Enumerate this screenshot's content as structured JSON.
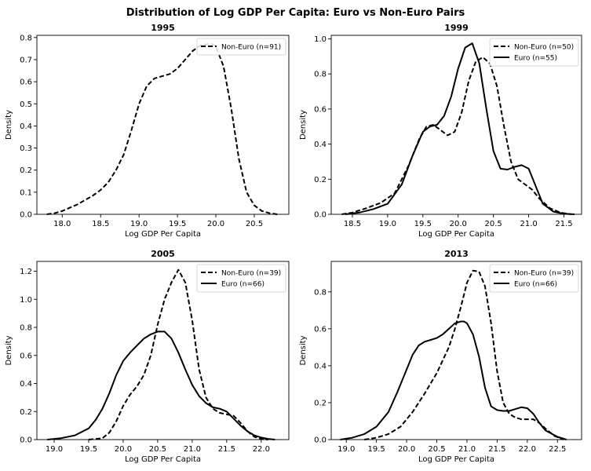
{
  "figure_title": "Distribution of Log GDP Per Capita: Euro vs Non-Euro Pairs",
  "colors": {
    "line": "#000000",
    "background": "#ffffff",
    "legend_border": "#cccccc"
  },
  "chart_data": [
    {
      "type": "line",
      "title": "1995",
      "xlabel": "Log GDP Per Capita",
      "ylabel": "Density",
      "xlim": [
        17.67,
        20.95
      ],
      "ylim": [
        0,
        0.81
      ],
      "xticks": [
        18.0,
        18.5,
        19.0,
        19.5,
        20.0,
        20.5
      ],
      "xtick_labels": [
        "18.0",
        "18.5",
        "19.0",
        "19.5",
        "20.0",
        "20.5"
      ],
      "yticks": [
        0,
        0.1,
        0.2,
        0.3,
        0.4,
        0.5,
        0.6,
        0.7,
        0.8
      ],
      "ytick_labels": [
        "0.0",
        "0.1",
        "0.2",
        "0.3",
        "0.4",
        "0.5",
        "0.6",
        "0.7",
        "0.8"
      ],
      "legend_position": "top-right",
      "series": [
        {
          "name": "Non-Euro (n=91)",
          "style": "dashed",
          "x": [
            17.8,
            17.9,
            18.0,
            18.1,
            18.2,
            18.3,
            18.4,
            18.5,
            18.6,
            18.7,
            18.8,
            18.9,
            19.0,
            19.1,
            19.2,
            19.3,
            19.4,
            19.5,
            19.6,
            19.7,
            19.8,
            19.9,
            19.95,
            20.0,
            20.1,
            20.2,
            20.3,
            20.4,
            20.5,
            20.6,
            20.7,
            20.8
          ],
          "y": [
            0.0,
            0.005,
            0.015,
            0.03,
            0.045,
            0.065,
            0.085,
            0.11,
            0.145,
            0.2,
            0.27,
            0.38,
            0.5,
            0.58,
            0.615,
            0.625,
            0.635,
            0.66,
            0.7,
            0.74,
            0.765,
            0.77,
            0.77,
            0.76,
            0.67,
            0.48,
            0.25,
            0.1,
            0.04,
            0.015,
            0.005,
            0.0
          ]
        }
      ]
    },
    {
      "type": "line",
      "title": "1999",
      "xlabel": "Log GDP Per Capita",
      "ylabel": "Density",
      "xlim": [
        18.2,
        21.75
      ],
      "ylim": [
        0,
        1.02
      ],
      "xticks": [
        18.5,
        19.0,
        19.5,
        20.0,
        20.5,
        21.0,
        21.5
      ],
      "xtick_labels": [
        "18.5",
        "19.0",
        "19.5",
        "20.0",
        "20.5",
        "21.0",
        "21.5"
      ],
      "yticks": [
        0,
        0.2,
        0.4,
        0.6,
        0.8,
        1.0
      ],
      "ytick_labels": [
        "0.0",
        "0.2",
        "0.4",
        "0.6",
        "0.8",
        "1.0"
      ],
      "legend_position": "top-right",
      "series": [
        {
          "name": "Non-Euro (n=50)",
          "style": "dashed",
          "x": [
            18.35,
            18.5,
            18.7,
            18.9,
            19.1,
            19.3,
            19.45,
            19.55,
            19.65,
            19.75,
            19.85,
            19.95,
            20.05,
            20.15,
            20.25,
            20.35,
            20.45,
            20.55,
            20.65,
            20.75,
            20.85,
            20.95,
            21.05,
            21.15,
            21.3,
            21.45,
            21.6
          ],
          "y": [
            0.0,
            0.01,
            0.035,
            0.065,
            0.12,
            0.28,
            0.43,
            0.5,
            0.51,
            0.48,
            0.45,
            0.47,
            0.58,
            0.76,
            0.87,
            0.895,
            0.86,
            0.73,
            0.5,
            0.3,
            0.2,
            0.17,
            0.14,
            0.09,
            0.035,
            0.01,
            0.0
          ]
        },
        {
          "name": "Euro (n=55)",
          "style": "solid",
          "x": [
            18.4,
            18.6,
            18.8,
            19.0,
            19.2,
            19.35,
            19.5,
            19.6,
            19.7,
            19.8,
            19.9,
            20.0,
            20.1,
            20.2,
            20.3,
            20.4,
            20.5,
            20.6,
            20.7,
            20.8,
            20.9,
            21.0,
            21.1,
            21.2,
            21.35,
            21.5,
            21.65
          ],
          "y": [
            0.0,
            0.01,
            0.03,
            0.06,
            0.17,
            0.33,
            0.47,
            0.5,
            0.51,
            0.56,
            0.67,
            0.83,
            0.95,
            0.975,
            0.86,
            0.6,
            0.36,
            0.26,
            0.255,
            0.27,
            0.28,
            0.26,
            0.16,
            0.06,
            0.015,
            0.003,
            0.0
          ]
        }
      ]
    },
    {
      "type": "line",
      "title": "2005",
      "xlabel": "Log GDP Per Capita",
      "ylabel": "Density",
      "xlim": [
        18.75,
        22.4
      ],
      "ylim": [
        0,
        1.27
      ],
      "xticks": [
        19.0,
        19.5,
        20.0,
        20.5,
        21.0,
        21.5,
        22.0
      ],
      "xtick_labels": [
        "19.0",
        "19.5",
        "20.0",
        "20.5",
        "21.0",
        "21.5",
        "22.0"
      ],
      "yticks": [
        0,
        0.2,
        0.4,
        0.6,
        0.8,
        1.0,
        1.2
      ],
      "ytick_labels": [
        "0.0",
        "0.2",
        "0.4",
        "0.6",
        "0.8",
        "1.0",
        "1.2"
      ],
      "legend_position": "top-right",
      "series": [
        {
          "name": "Non-Euro (n=39)",
          "style": "dashed",
          "x": [
            19.5,
            19.7,
            19.8,
            19.9,
            20.0,
            20.1,
            20.2,
            20.3,
            20.4,
            20.5,
            20.6,
            20.7,
            20.8,
            20.9,
            21.0,
            21.1,
            21.2,
            21.3,
            21.4,
            21.5,
            21.6,
            21.7,
            21.8,
            21.9,
            22.0,
            22.1
          ],
          "y": [
            0.0,
            0.01,
            0.05,
            0.13,
            0.24,
            0.32,
            0.38,
            0.46,
            0.6,
            0.82,
            1.0,
            1.12,
            1.21,
            1.12,
            0.85,
            0.5,
            0.3,
            0.22,
            0.19,
            0.18,
            0.17,
            0.12,
            0.06,
            0.02,
            0.005,
            0.0
          ]
        },
        {
          "name": "Euro (n=66)",
          "style": "solid",
          "x": [
            18.9,
            19.1,
            19.3,
            19.5,
            19.6,
            19.7,
            19.8,
            19.9,
            20.0,
            20.1,
            20.2,
            20.3,
            20.4,
            20.5,
            20.6,
            20.7,
            20.8,
            20.9,
            21.0,
            21.1,
            21.2,
            21.3,
            21.4,
            21.5,
            21.6,
            21.7,
            21.8,
            21.9,
            22.0,
            22.1,
            22.2
          ],
          "y": [
            0.0,
            0.01,
            0.03,
            0.08,
            0.14,
            0.22,
            0.33,
            0.46,
            0.56,
            0.62,
            0.67,
            0.72,
            0.75,
            0.77,
            0.77,
            0.72,
            0.62,
            0.5,
            0.39,
            0.31,
            0.26,
            0.23,
            0.22,
            0.2,
            0.15,
            0.1,
            0.06,
            0.03,
            0.015,
            0.005,
            0.0
          ]
        }
      ]
    },
    {
      "type": "line",
      "title": "2013",
      "xlabel": "Log GDP Per Capita",
      "ylabel": "Density",
      "xlim": [
        18.75,
        22.9
      ],
      "ylim": [
        0,
        0.965
      ],
      "xticks": [
        19.0,
        19.5,
        20.0,
        20.5,
        21.0,
        21.5,
        22.0,
        22.5
      ],
      "xtick_labels": [
        "19.0",
        "19.5",
        "20.0",
        "20.5",
        "21.0",
        "21.5",
        "22.0",
        "22.5"
      ],
      "yticks": [
        0,
        0.2,
        0.4,
        0.6,
        0.8
      ],
      "ytick_labels": [
        "0.0",
        "0.2",
        "0.4",
        "0.6",
        "0.8"
      ],
      "legend_position": "top-right",
      "series": [
        {
          "name": "Non-Euro (n=39)",
          "style": "dashed",
          "x": [
            19.3,
            19.5,
            19.7,
            19.9,
            20.1,
            20.3,
            20.5,
            20.7,
            20.8,
            20.9,
            21.0,
            21.1,
            21.2,
            21.3,
            21.4,
            21.5,
            21.6,
            21.7,
            21.8,
            21.9,
            22.0,
            22.1,
            22.2,
            22.3,
            22.45,
            22.6
          ],
          "y": [
            0.0,
            0.01,
            0.03,
            0.07,
            0.15,
            0.25,
            0.36,
            0.5,
            0.6,
            0.72,
            0.85,
            0.915,
            0.91,
            0.83,
            0.63,
            0.37,
            0.2,
            0.14,
            0.12,
            0.11,
            0.11,
            0.11,
            0.09,
            0.06,
            0.02,
            0.0
          ]
        },
        {
          "name": "Euro (n=66)",
          "style": "solid",
          "x": [
            18.9,
            19.1,
            19.3,
            19.5,
            19.7,
            19.85,
            20.0,
            20.1,
            20.2,
            20.3,
            20.4,
            20.5,
            20.6,
            20.7,
            20.8,
            20.9,
            20.95,
            21.0,
            21.1,
            21.2,
            21.3,
            21.4,
            21.5,
            21.6,
            21.7,
            21.8,
            21.9,
            22.0,
            22.1,
            22.2,
            22.3,
            22.5,
            22.65
          ],
          "y": [
            0.0,
            0.01,
            0.03,
            0.07,
            0.15,
            0.26,
            0.38,
            0.46,
            0.51,
            0.53,
            0.54,
            0.55,
            0.57,
            0.6,
            0.63,
            0.64,
            0.64,
            0.63,
            0.57,
            0.45,
            0.28,
            0.18,
            0.16,
            0.155,
            0.155,
            0.165,
            0.175,
            0.17,
            0.14,
            0.09,
            0.05,
            0.015,
            0.0
          ]
        }
      ]
    }
  ]
}
